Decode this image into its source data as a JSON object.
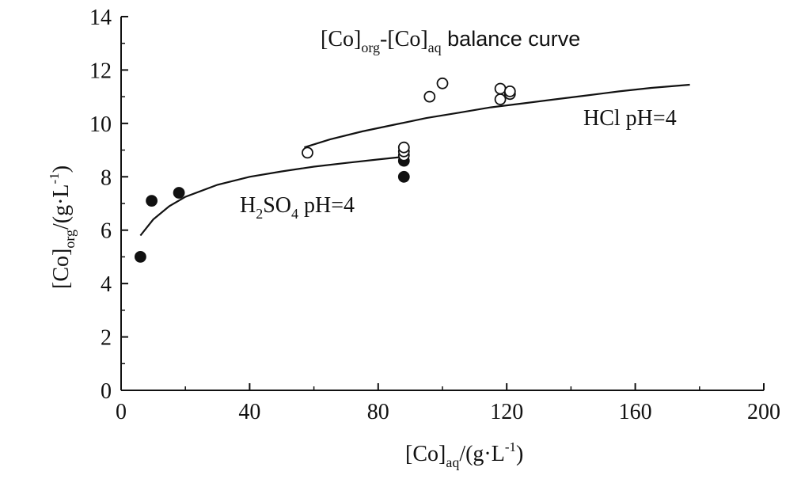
{
  "chart_data": {
    "type": "scatter",
    "title": "",
    "xlim": [
      0,
      200
    ],
    "ylim": [
      0,
      14
    ],
    "x_ticks": [
      "0",
      "40",
      "80",
      "120",
      "160",
      "200"
    ],
    "y_ticks": [
      "0",
      "2",
      "4",
      "6",
      "8",
      "10",
      "12",
      "14"
    ],
    "xlabel": {
      "base": "[Co]",
      "sub": "aq",
      "mid": "/(g·L",
      "sup": "-1",
      "end": ")"
    },
    "ylabel": {
      "base": "[Co]",
      "sub": "org",
      "mid": "/(g·L",
      "sup": "-1",
      "end": ")"
    },
    "annotation": {
      "part1": "[Co]",
      "sub1": "org",
      "part2": "-[Co]",
      "sub2": "aq",
      "part3": " balance curve"
    },
    "grid": false,
    "series": [
      {
        "marker": "filled-circle",
        "label": {
          "base": "H",
          "sub1": "2",
          "mid": "SO",
          "sub2": "4",
          "end": " pH=4"
        },
        "points": [
          {
            "x": 6,
            "y": 5.0
          },
          {
            "x": 9.5,
            "y": 7.1
          },
          {
            "x": 18,
            "y": 7.4
          },
          {
            "x": 88,
            "y": 8.0
          },
          {
            "x": 88,
            "y": 8.6
          }
        ],
        "fit_curve": [
          {
            "x": 6,
            "y": 5.8
          },
          {
            "x": 10,
            "y": 6.4
          },
          {
            "x": 15,
            "y": 6.9
          },
          {
            "x": 20,
            "y": 7.25
          },
          {
            "x": 30,
            "y": 7.7
          },
          {
            "x": 40,
            "y": 8.0
          },
          {
            "x": 50,
            "y": 8.2
          },
          {
            "x": 60,
            "y": 8.38
          },
          {
            "x": 70,
            "y": 8.52
          },
          {
            "x": 80,
            "y": 8.65
          },
          {
            "x": 88,
            "y": 8.75
          }
        ]
      },
      {
        "marker": "open-circle",
        "label": {
          "base": "HCl pH=4"
        },
        "points": [
          {
            "x": 58,
            "y": 8.9
          },
          {
            "x": 88,
            "y": 8.8
          },
          {
            "x": 88,
            "y": 8.95
          },
          {
            "x": 88,
            "y": 9.1
          },
          {
            "x": 96,
            "y": 11.0
          },
          {
            "x": 100,
            "y": 11.5
          },
          {
            "x": 118,
            "y": 10.9
          },
          {
            "x": 118,
            "y": 11.3
          },
          {
            "x": 121,
            "y": 11.1
          },
          {
            "x": 121,
            "y": 11.2
          }
        ],
        "fit_curve": [
          {
            "x": 57,
            "y": 9.1
          },
          {
            "x": 65,
            "y": 9.4
          },
          {
            "x": 75,
            "y": 9.7
          },
          {
            "x": 85,
            "y": 9.95
          },
          {
            "x": 95,
            "y": 10.2
          },
          {
            "x": 105,
            "y": 10.4
          },
          {
            "x": 115,
            "y": 10.6
          },
          {
            "x": 125,
            "y": 10.75
          },
          {
            "x": 135,
            "y": 10.9
          },
          {
            "x": 145,
            "y": 11.05
          },
          {
            "x": 155,
            "y": 11.2
          },
          {
            "x": 165,
            "y": 11.33
          },
          {
            "x": 177,
            "y": 11.45
          }
        ]
      }
    ]
  }
}
